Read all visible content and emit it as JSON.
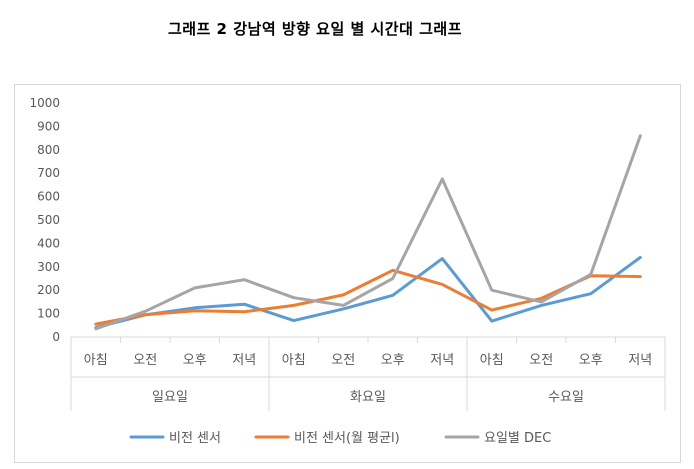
{
  "header": {
    "title": "그래프 2 강남역 방향 요일 별 시간대 그래프"
  },
  "chart_data": {
    "type": "line",
    "ylim": [
      0,
      1000
    ],
    "yticks": [
      0,
      100,
      200,
      300,
      400,
      500,
      600,
      700,
      800,
      900,
      1000
    ],
    "groups": [
      {
        "label": "일요일",
        "categories": [
          "아침",
          "오전",
          "오후",
          "저녁"
        ]
      },
      {
        "label": "화요일",
        "categories": [
          "아침",
          "오전",
          "오후",
          "저녁"
        ]
      },
      {
        "label": "수요일",
        "categories": [
          "아침",
          "오전",
          "오후",
          "저녁"
        ]
      }
    ],
    "series": [
      {
        "name": "비전 센서",
        "color": "#5B9BD5",
        "values": [
          40,
          95,
          125,
          140,
          70,
          120,
          178,
          335,
          68,
          135,
          185,
          340
        ]
      },
      {
        "name": "비전 센서(월 평균l)",
        "color": "#ED7D31",
        "values": [
          55,
          95,
          112,
          108,
          135,
          180,
          285,
          225,
          115,
          165,
          262,
          258
        ]
      },
      {
        "name": "요일별 DEC",
        "color": "#A5A5A5",
        "values": [
          35,
          110,
          210,
          245,
          168,
          135,
          250,
          675,
          200,
          150,
          268,
          860
        ]
      }
    ],
    "grid": false,
    "legend": "bottom"
  }
}
